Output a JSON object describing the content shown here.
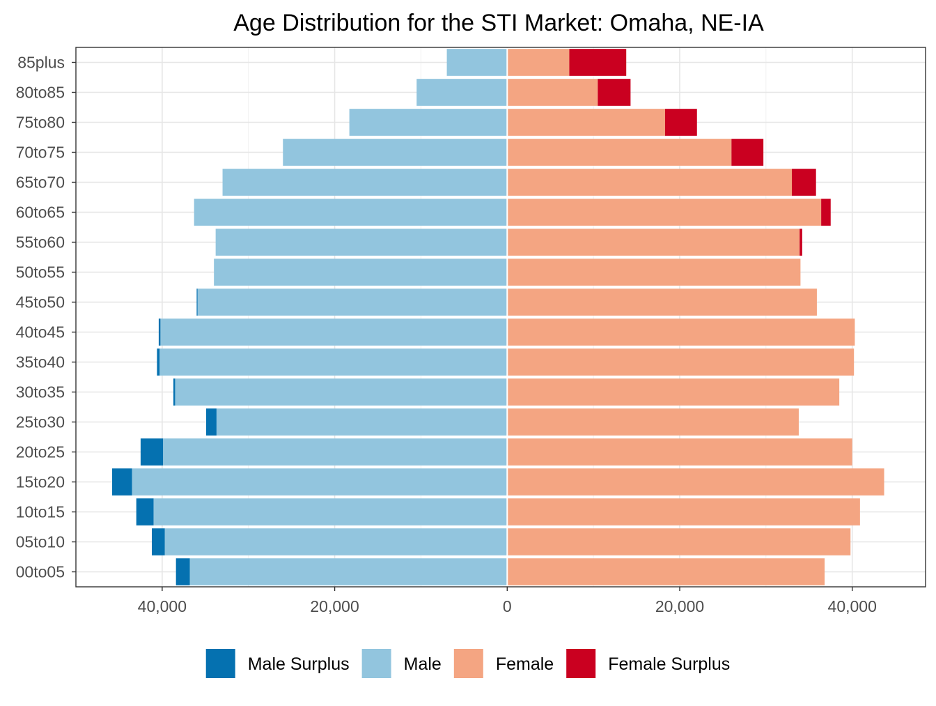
{
  "chart_data": {
    "type": "bar",
    "orientation": "horizontal",
    "title": "Age Distribution for the STI Market: Omaha, NE-IA",
    "xlabel": "",
    "ylabel": "",
    "xlim": [
      -50000,
      48500
    ],
    "x_ticks": [
      {
        "value": -40000,
        "label": "40,000"
      },
      {
        "value": -20000,
        "label": "20,000"
      },
      {
        "value": 0,
        "label": "0"
      },
      {
        "value": 20000,
        "label": "20,000"
      },
      {
        "value": 40000,
        "label": "40,000"
      }
    ],
    "categories": [
      "00to05",
      "05to10",
      "10to15",
      "15to20",
      "20to25",
      "25to30",
      "30to35",
      "35to40",
      "40to45",
      "45to50",
      "50to55",
      "55to60",
      "60to65",
      "65to70",
      "70to75",
      "75to80",
      "80to85",
      "85plus"
    ],
    "series": [
      {
        "name": "Male",
        "color": "#92C5DE",
        "values": [
          36800,
          39700,
          41000,
          43500,
          39900,
          33700,
          38500,
          40300,
          40200,
          35900,
          34000,
          33800,
          36300,
          33000,
          26000,
          18300,
          10500,
          7000
        ]
      },
      {
        "name": "Male Surplus",
        "color": "#0571B0",
        "values": [
          1600,
          1500,
          2000,
          2300,
          2600,
          1200,
          200,
          300,
          200,
          100,
          0,
          0,
          0,
          0,
          0,
          0,
          0,
          0
        ]
      },
      {
        "name": "Female",
        "color": "#F4A582",
        "values": [
          36800,
          39800,
          40900,
          43700,
          40000,
          33800,
          38500,
          40200,
          40300,
          35900,
          34000,
          33900,
          36400,
          33000,
          26000,
          18300,
          10500,
          7200
        ]
      },
      {
        "name": "Female Surplus",
        "color": "#CA0020",
        "values": [
          0,
          0,
          0,
          0,
          0,
          0,
          0,
          0,
          0,
          0,
          0,
          300,
          1100,
          2800,
          3700,
          3700,
          3800,
          6600
        ]
      }
    ],
    "legend": {
      "position": "bottom",
      "order": [
        "Male Surplus",
        "Male",
        "Female",
        "Female Surplus"
      ]
    },
    "grid": true
  }
}
